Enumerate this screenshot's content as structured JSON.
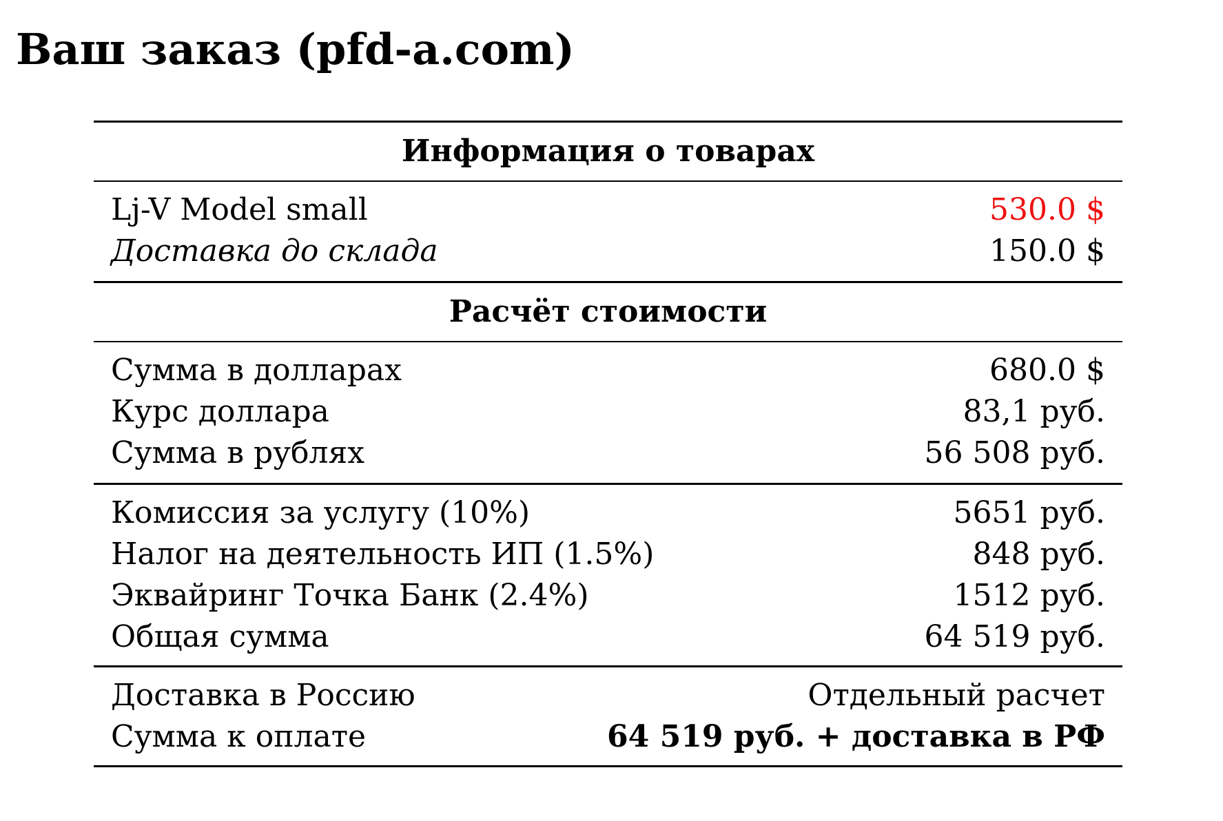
{
  "title": "Ваш заказ (pfd-a.com)",
  "colors": {
    "text": "#000000",
    "price_highlight": "#ee1111",
    "background": "#ffffff"
  },
  "products_section": {
    "header": "Информация о товарах",
    "rows": [
      {
        "label": "Lj-V Model small",
        "value": "530.0 $"
      },
      {
        "label": "Доставка до склада",
        "value": "150.0 $"
      }
    ]
  },
  "calculation_section": {
    "header": "Расчёт стоимости",
    "conversion_rows": [
      {
        "label": "Сумма в долларах",
        "value": "680.0 $"
      },
      {
        "label": "Курс доллара",
        "value": "83,1 руб."
      },
      {
        "label": "Сумма в рублях",
        "value": "56 508 руб."
      }
    ],
    "fee_rows": [
      {
        "label": "Комиссия за услугу (10%)",
        "value": "5651 руб."
      },
      {
        "label": "Налог на деятельность ИП (1.5%)",
        "value": "848 руб."
      },
      {
        "label": "Эквайринг Точка Банк (2.4%)",
        "value": "1512 руб."
      },
      {
        "label": "Общая сумма",
        "value": "64 519 руб."
      }
    ],
    "final_rows": [
      {
        "label": "Доставка в Россию",
        "value": "Отдельный расчет"
      },
      {
        "label": "Сумма к оплате",
        "value": "64 519 руб. + доставка в РФ"
      }
    ]
  }
}
